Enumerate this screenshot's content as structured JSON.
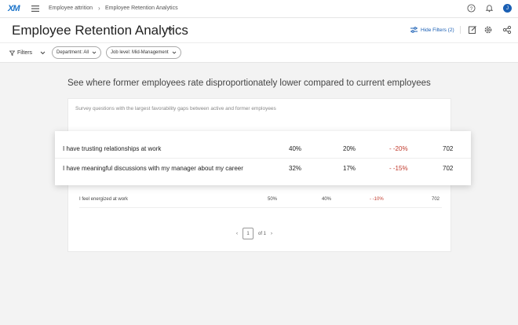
{
  "app": {
    "logo": "XM"
  },
  "breadcrumb": {
    "parent": "Employee attrition",
    "current": "Employee Retention Analytics"
  },
  "header": {
    "avatar_initial": "J",
    "icons": [
      "help-icon",
      "bell-icon"
    ]
  },
  "title_bar": {
    "title": "Employee Retention Analytics",
    "hide_filters_label": "Hide Filters (2)",
    "actions": [
      "edit-icon",
      "settings-icon",
      "share-icon"
    ]
  },
  "filters": {
    "label": "Filters",
    "pills": [
      {
        "label": "Department: All"
      },
      {
        "label": "Job level: Mid-Management"
      }
    ]
  },
  "widget": {
    "heading": "See where former employees rate disproportionately lower compared to current employees",
    "subtitle": "Survey questions with the largest favorability gaps between active and former employees",
    "rows": [
      {
        "question": "I have trusting relationships at work",
        "active": "40%",
        "former": "20%",
        "gap": "-20%",
        "n": "702"
      },
      {
        "question": "I have meaningful discussions with my manager about my career",
        "active": "32%",
        "former": "17%",
        "gap": "-15%",
        "n": "702"
      },
      {
        "question": "I feel energized at work",
        "active": "50%",
        "former": "40%",
        "gap": "-10%",
        "n": "702"
      }
    ],
    "pagination": {
      "page": "1",
      "of_label": "of 1"
    }
  },
  "colors": {
    "accent": "#1a5fb4",
    "negative": "#c0392b",
    "background": "#f3f3f3"
  }
}
